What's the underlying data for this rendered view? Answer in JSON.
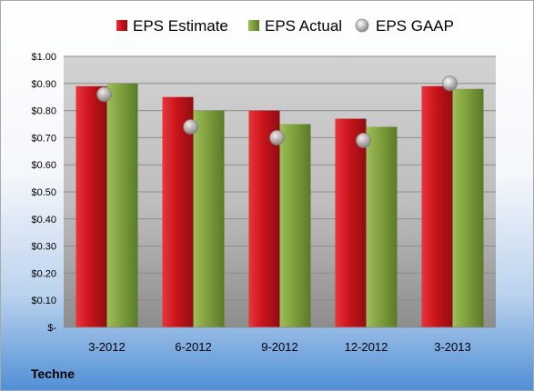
{
  "company": "Techne",
  "colors": {
    "estimate": "#c8141a",
    "actual": "#7fa03e",
    "gaap": "#b0b0b0"
  },
  "chart_data": {
    "type": "bar",
    "categories": [
      "3-2012",
      "6-2012",
      "9-2012",
      "12-2012",
      "3-2013"
    ],
    "series": [
      {
        "name": "EPS Estimate",
        "kind": "bar",
        "values": [
          0.89,
          0.85,
          0.8,
          0.77,
          0.89
        ]
      },
      {
        "name": "EPS Actual",
        "kind": "bar",
        "values": [
          0.9,
          0.8,
          0.75,
          0.74,
          0.88
        ]
      },
      {
        "name": "EPS GAAP",
        "kind": "marker",
        "values": [
          0.86,
          0.74,
          0.7,
          0.69,
          0.9
        ]
      }
    ],
    "yticks": [
      "$-",
      "$0.10",
      "$0.20",
      "$0.30",
      "$0.40",
      "$0.50",
      "$0.60",
      "$0.70",
      "$0.80",
      "$0.90",
      "$1.00"
    ],
    "ylim": [
      0,
      1.0
    ],
    "grid": true,
    "legend_position": "top"
  }
}
